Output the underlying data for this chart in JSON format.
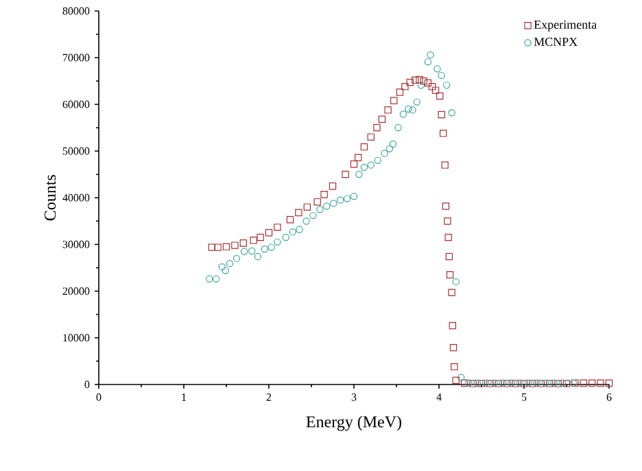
{
  "chart_data": {
    "type": "scatter",
    "xlabel": "Energy (MeV)",
    "ylabel": "Counts",
    "xlim": [
      0,
      6
    ],
    "ylim": [
      0,
      80000
    ],
    "xticks": [
      0,
      1,
      2,
      3,
      4,
      5,
      6
    ],
    "yticks": [
      0,
      10000,
      20000,
      30000,
      40000,
      50000,
      60000,
      70000,
      80000
    ],
    "grid": false,
    "legend": "top right",
    "series": [
      {
        "name": "Experimenta",
        "color": "#a83232",
        "marker": "square",
        "x": [
          1.33,
          1.4,
          1.5,
          1.6,
          1.7,
          1.82,
          1.9,
          2.0,
          2.1,
          2.25,
          2.35,
          2.45,
          2.57,
          2.65,
          2.75,
          2.9,
          3.0,
          3.05,
          3.12,
          3.2,
          3.27,
          3.33,
          3.4,
          3.47,
          3.54,
          3.6,
          3.66,
          3.72,
          3.77,
          3.82,
          3.87,
          3.92,
          3.96,
          4.01,
          4.03,
          4.05,
          4.07,
          4.08,
          4.1,
          4.11,
          4.12,
          4.13,
          4.15,
          4.16,
          4.17,
          4.18,
          4.2,
          4.3,
          4.4,
          4.5,
          4.6,
          4.7,
          4.8,
          4.9,
          5.0,
          5.1,
          5.2,
          5.3,
          5.4,
          5.5,
          5.6,
          5.7,
          5.8,
          5.9,
          6.0
        ],
        "values": [
          29400,
          29400,
          29500,
          29800,
          30300,
          30900,
          31500,
          32500,
          33700,
          35300,
          36800,
          38000,
          39100,
          40700,
          42500,
          45000,
          47200,
          48600,
          50900,
          53000,
          55000,
          56800,
          58800,
          60800,
          62600,
          63800,
          64700,
          65200,
          65300,
          65000,
          64600,
          63800,
          63000,
          61800,
          57800,
          53800,
          47000,
          38200,
          35000,
          31500,
          27400,
          23500,
          19700,
          12600,
          7900,
          3800,
          900,
          300,
          200,
          200,
          200,
          200,
          200,
          200,
          200,
          200,
          200,
          200,
          200,
          200,
          300,
          300,
          300,
          300,
          300
        ]
      },
      {
        "name": "MCNPX",
        "color": "#3aa6a0",
        "marker": "circle",
        "x": [
          1.3,
          1.38,
          1.45,
          1.49,
          1.54,
          1.62,
          1.71,
          1.8,
          1.87,
          1.95,
          2.03,
          2.1,
          2.2,
          2.28,
          2.36,
          2.44,
          2.52,
          2.6,
          2.68,
          2.76,
          2.84,
          2.92,
          3.0,
          3.06,
          3.12,
          3.2,
          3.28,
          3.36,
          3.42,
          3.46,
          3.52,
          3.58,
          3.64,
          3.69,
          3.74,
          3.79,
          3.87,
          3.9,
          3.98,
          4.03,
          4.09,
          4.15,
          4.2,
          4.26,
          4.35,
          4.45,
          4.55,
          4.65,
          4.75,
          4.85,
          4.95,
          5.05,
          5.15,
          5.25,
          5.35,
          5.45,
          5.58
        ],
        "values": [
          22600,
          22600,
          25200,
          24400,
          25900,
          27000,
          28500,
          28600,
          27400,
          29000,
          29400,
          30500,
          31500,
          32700,
          33200,
          35000,
          36200,
          37500,
          38200,
          38800,
          39500,
          39800,
          40300,
          45000,
          46500,
          47000,
          48000,
          49500,
          50500,
          51500,
          55000,
          57900,
          59000,
          58800,
          60500,
          64100,
          69100,
          70600,
          67600,
          66200,
          64100,
          58200,
          22000,
          1500,
          300,
          300,
          300,
          300,
          300,
          300,
          300,
          300,
          300,
          300,
          300,
          300,
          300
        ]
      }
    ]
  }
}
